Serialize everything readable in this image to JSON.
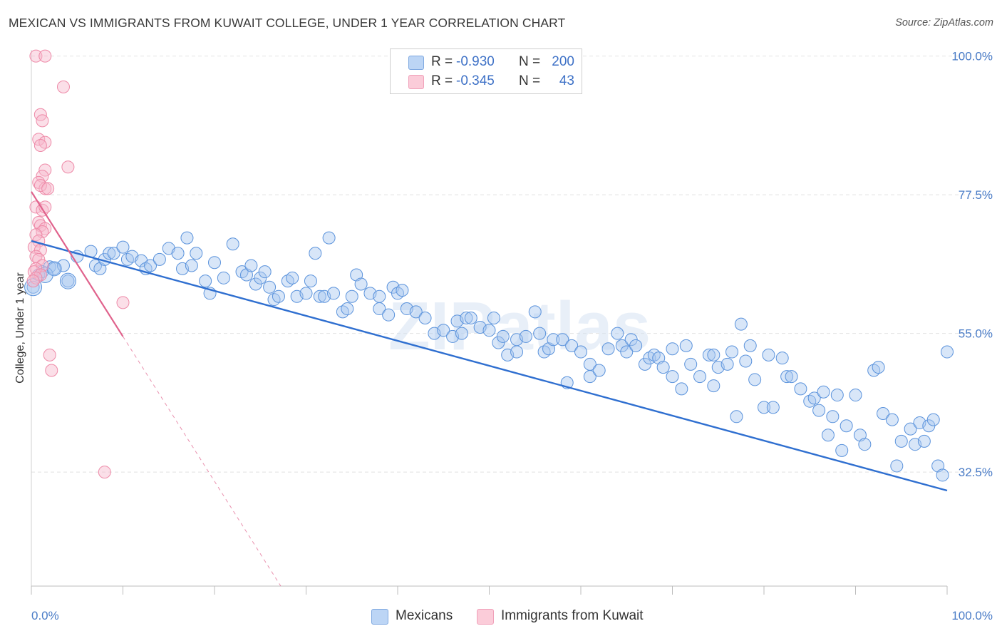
{
  "title": "MEXICAN VS IMMIGRANTS FROM KUWAIT COLLEGE, UNDER 1 YEAR CORRELATION CHART",
  "source": "Source: ZipAtlas.com",
  "watermark": "ZIPatlas",
  "legend": {
    "rows": [
      {
        "r_label": "R =",
        "r_value": "-0.930",
        "n_label": "N =",
        "n_value": "200",
        "color": "#a9c8f0"
      },
      {
        "r_label": "R =",
        "r_value": "-0.345",
        "n_label": "N =",
        "n_value": "43",
        "color": "#f7b8cb"
      }
    ]
  },
  "bottom_legend": [
    "Mexicans",
    "Immigrants from Kuwait"
  ],
  "chart_data": {
    "type": "scatter",
    "xlabel": "",
    "ylabel": "College, Under 1 year",
    "xlim": [
      0,
      100
    ],
    "ylim": [
      14,
      101
    ],
    "x_tick_labels": [
      "0.0%",
      "100.0%"
    ],
    "y_ticks": [
      100,
      77.5,
      55,
      32.5
    ],
    "y_tick_labels": [
      "100.0%",
      "77.5%",
      "55.0%",
      "32.5%"
    ],
    "grid": true,
    "legend_position": "top-center",
    "colors": {
      "mexicans": "#5b93dc",
      "kuwait": "#ee8aa8",
      "mexicans_line": "#2f6fd0",
      "kuwait_line": "#e0628c"
    },
    "series": [
      {
        "name": "Mexicans",
        "trend": {
          "x0": 0,
          "y0": 70,
          "x1": 100,
          "y1": 29.5
        },
        "points": [
          [
            0.2,
            62.5
          ],
          [
            0.8,
            64.5
          ],
          [
            1.2,
            65
          ],
          [
            2,
            65.8
          ],
          [
            2.5,
            65.5
          ],
          [
            3.5,
            66
          ],
          [
            4,
            63.5
          ],
          [
            5,
            67.5
          ],
          [
            6.5,
            68.3
          ],
          [
            7,
            66
          ],
          [
            7.5,
            65.5
          ],
          [
            8,
            67
          ],
          [
            8.5,
            68
          ],
          [
            9,
            68
          ],
          [
            10,
            69
          ],
          [
            10.5,
            67
          ],
          [
            11,
            67.5
          ],
          [
            12,
            66.8
          ],
          [
            12.5,
            65.5
          ],
          [
            13,
            66
          ],
          [
            14,
            67
          ],
          [
            15,
            68.8
          ],
          [
            16,
            68
          ],
          [
            16.5,
            65.5
          ],
          [
            17,
            70.5
          ],
          [
            17.5,
            66
          ],
          [
            18,
            68
          ],
          [
            19,
            63.5
          ],
          [
            19.5,
            61.5
          ],
          [
            20,
            66.5
          ],
          [
            21,
            64
          ],
          [
            22,
            69.5
          ],
          [
            23,
            65
          ],
          [
            23.5,
            64.5
          ],
          [
            24,
            66
          ],
          [
            24.5,
            63
          ],
          [
            25,
            64
          ],
          [
            25.5,
            65
          ],
          [
            26,
            62.5
          ],
          [
            26.5,
            60.5
          ],
          [
            27,
            61
          ],
          [
            28,
            63.5
          ],
          [
            28.5,
            64
          ],
          [
            29,
            61
          ],
          [
            30,
            61.5
          ],
          [
            30.5,
            63.5
          ],
          [
            31,
            68
          ],
          [
            31.5,
            61
          ],
          [
            32,
            61
          ],
          [
            32.5,
            70.5
          ],
          [
            33,
            61.5
          ],
          [
            34,
            58.5
          ],
          [
            34.5,
            59
          ],
          [
            35,
            61
          ],
          [
            35.5,
            64.5
          ],
          [
            36,
            63
          ],
          [
            37,
            61.5
          ],
          [
            38,
            61
          ],
          [
            38,
            59
          ],
          [
            39,
            58
          ],
          [
            39.5,
            62.5
          ],
          [
            40,
            61.5
          ],
          [
            40.5,
            62
          ],
          [
            41,
            59
          ],
          [
            42,
            58.5
          ],
          [
            43,
            57.5
          ],
          [
            44,
            55
          ],
          [
            45,
            55.5
          ],
          [
            46,
            54.5
          ],
          [
            46.5,
            57
          ],
          [
            47,
            55
          ],
          [
            47.5,
            57.5
          ],
          [
            48,
            57.5
          ],
          [
            49,
            56
          ],
          [
            50,
            55.5
          ],
          [
            50.5,
            57.5
          ],
          [
            51,
            53.5
          ],
          [
            51.5,
            54.5
          ],
          [
            52,
            51.5
          ],
          [
            53,
            52
          ],
          [
            53,
            54
          ],
          [
            54,
            54.5
          ],
          [
            55,
            58.5
          ],
          [
            55.5,
            55
          ],
          [
            56,
            52
          ],
          [
            56.5,
            52.5
          ],
          [
            57,
            54
          ],
          [
            58,
            54
          ],
          [
            58.5,
            47
          ],
          [
            59,
            53
          ],
          [
            60,
            52
          ],
          [
            61,
            50
          ],
          [
            61,
            48
          ],
          [
            62,
            49
          ],
          [
            63,
            52.5
          ],
          [
            64,
            55
          ],
          [
            64.5,
            53
          ],
          [
            65,
            52
          ],
          [
            65.5,
            54
          ],
          [
            66,
            53
          ],
          [
            67,
            50
          ],
          [
            67.5,
            51
          ],
          [
            68,
            51.5
          ],
          [
            68.5,
            51
          ],
          [
            69,
            49.5
          ],
          [
            70,
            52.5
          ],
          [
            70,
            48
          ],
          [
            71,
            46
          ],
          [
            71.5,
            53
          ],
          [
            72,
            50
          ],
          [
            73,
            48
          ],
          [
            74,
            51.5
          ],
          [
            74.5,
            51.5
          ],
          [
            74.5,
            46.5
          ],
          [
            75,
            49.5
          ],
          [
            76,
            50
          ],
          [
            76.5,
            52
          ],
          [
            77,
            41.5
          ],
          [
            77.5,
            56.5
          ],
          [
            78,
            50.5
          ],
          [
            78.5,
            53
          ],
          [
            79,
            47.5
          ],
          [
            80,
            43
          ],
          [
            80.5,
            51.5
          ],
          [
            81,
            43
          ],
          [
            82,
            51
          ],
          [
            82.5,
            48
          ],
          [
            83,
            48
          ],
          [
            84,
            46
          ],
          [
            85,
            44
          ],
          [
            85.5,
            44.5
          ],
          [
            86,
            42.5
          ],
          [
            86.5,
            45.5
          ],
          [
            87,
            38.5
          ],
          [
            87.5,
            41.5
          ],
          [
            88,
            45
          ],
          [
            88.5,
            36
          ],
          [
            89,
            40
          ],
          [
            90,
            45
          ],
          [
            90.5,
            38.5
          ],
          [
            91,
            37
          ],
          [
            92,
            49
          ],
          [
            92.5,
            49.5
          ],
          [
            93,
            42
          ],
          [
            94,
            41
          ],
          [
            94.5,
            33.5
          ],
          [
            95,
            37.5
          ],
          [
            96,
            39.5
          ],
          [
            96.5,
            37
          ],
          [
            97,
            40.5
          ],
          [
            97.5,
            37.5
          ],
          [
            98,
            40
          ],
          [
            98.5,
            41
          ],
          [
            99,
            33.5
          ],
          [
            99.5,
            32
          ],
          [
            100,
            52
          ]
        ]
      },
      {
        "name": "Immigrants from Kuwait",
        "trend": {
          "x0": 0,
          "y0": 78,
          "x1": 10,
          "y1": 54.5
        },
        "points": [
          [
            0.5,
            100
          ],
          [
            1.5,
            100
          ],
          [
            3.5,
            95
          ],
          [
            1,
            90.5
          ],
          [
            1.2,
            89.5
          ],
          [
            0.8,
            86.5
          ],
          [
            1.5,
            86
          ],
          [
            1,
            85.5
          ],
          [
            4,
            82
          ],
          [
            1.5,
            81.5
          ],
          [
            1.2,
            80.5
          ],
          [
            0.8,
            79.5
          ],
          [
            1.5,
            78.5
          ],
          [
            1,
            79
          ],
          [
            1.8,
            78.5
          ],
          [
            0.5,
            75.5
          ],
          [
            1.2,
            75
          ],
          [
            1.5,
            75.5
          ],
          [
            0.8,
            73
          ],
          [
            1,
            72.5
          ],
          [
            1.5,
            72
          ],
          [
            1.2,
            71.5
          ],
          [
            0.5,
            71
          ],
          [
            0.8,
            70
          ],
          [
            0.3,
            69
          ],
          [
            1,
            68.5
          ],
          [
            0.5,
            67.5
          ],
          [
            0.8,
            67
          ],
          [
            1.2,
            66
          ],
          [
            0.5,
            65.5
          ],
          [
            0.3,
            65
          ],
          [
            1,
            64.5
          ],
          [
            0.5,
            64
          ],
          [
            0.2,
            63.5
          ],
          [
            10,
            60
          ],
          [
            2,
            51.5
          ],
          [
            2.2,
            49
          ],
          [
            8,
            32.5
          ]
        ]
      }
    ]
  }
}
